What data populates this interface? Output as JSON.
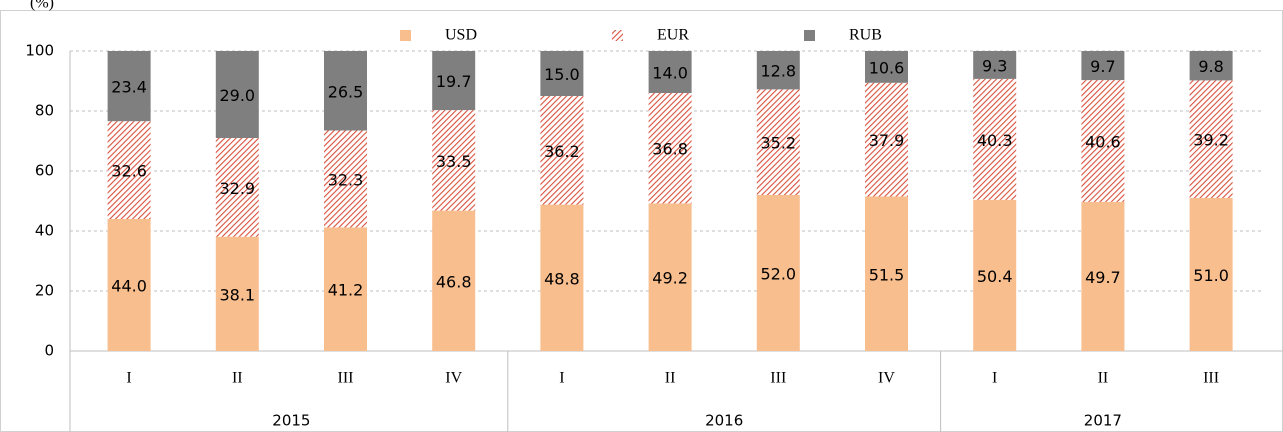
{
  "chart_data": {
    "type": "stacked-bar",
    "ylabel": "(%)",
    "groups": [
      {
        "name": "2015",
        "categories": [
          "I",
          "II",
          "III",
          "IV"
        ]
      },
      {
        "name": "2016",
        "categories": [
          "I",
          "II",
          "III",
          "IV"
        ]
      },
      {
        "name": "2017",
        "categories": [
          "I",
          "II",
          "III"
        ]
      }
    ],
    "series": [
      {
        "name": "USD",
        "color": "#f9be8e",
        "pattern": "solid",
        "values": [
          44.0,
          38.1,
          41.2,
          46.8,
          48.8,
          49.2,
          52.0,
          51.5,
          50.4,
          49.7,
          51.0
        ],
        "value_labels": [
          "44.0",
          "38.1",
          "41.2",
          "46.8",
          "48.8",
          "49.2",
          "52.0",
          "51.5",
          "50.4",
          "49.7",
          "51.0"
        ]
      },
      {
        "name": "EUR",
        "color": "#d9503c",
        "pattern": "hatch",
        "values": [
          32.6,
          32.9,
          32.3,
          33.5,
          36.2,
          36.8,
          35.2,
          37.9,
          40.3,
          40.6,
          39.2
        ],
        "value_labels": [
          "32.6",
          "32.9",
          "32.3",
          "33.5",
          "36.2",
          "36.8",
          "35.2",
          "37.9",
          "40.3",
          "40.6",
          "39.2"
        ]
      },
      {
        "name": "RUB",
        "color": "#7f7f7f",
        "pattern": "solid",
        "values": [
          23.4,
          29.0,
          26.5,
          19.7,
          15.0,
          14.0,
          12.8,
          10.6,
          9.3,
          9.7,
          9.8
        ],
        "value_labels": [
          "23.4",
          "29.0",
          "26.5",
          "19.7",
          "15.0",
          "14.0",
          "12.8",
          "10.6",
          "9.3",
          "9.7",
          "9.8"
        ]
      }
    ],
    "ylim": [
      0,
      100
    ],
    "yticks": [
      0,
      20,
      40,
      60,
      80,
      100
    ],
    "grid": true,
    "legend": "top"
  }
}
